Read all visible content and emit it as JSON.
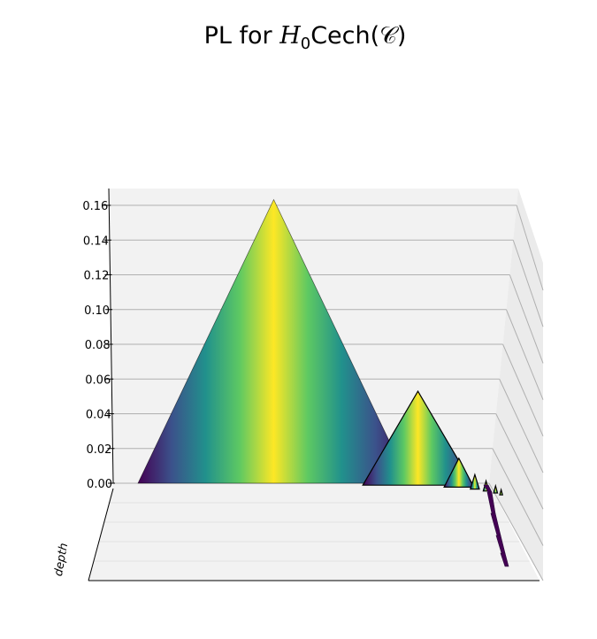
{
  "chart_data": {
    "type": "area",
    "title": "PL for H0Cech(C)",
    "title_parts": {
      "prefix": "PL for ",
      "H": "H",
      "sub": "0",
      "mid": "Cech(",
      "C": "𝒞",
      "suffix": ")"
    },
    "zlabel": "depth",
    "zlim": [
      0,
      0.17
    ],
    "z_ticks": [
      0.0,
      0.02,
      0.04,
      0.06,
      0.08,
      0.1,
      0.12,
      0.14,
      0.16
    ],
    "z_tick_labels": [
      "0.00",
      "0.02",
      "0.04",
      "0.06",
      "0.08",
      "0.10",
      "0.12",
      "0.14",
      "0.16"
    ],
    "grid": true,
    "colormap": "viridis",
    "colors": {
      "pane": "#f2f2f2",
      "grid": "#b0b0b0",
      "edge": "#000000",
      "viridis": [
        "#440154",
        "#3b528b",
        "#21918c",
        "#5ec962",
        "#fde725"
      ]
    },
    "series": [
      {
        "x": [
          0.0,
          0.4847,
          0.9693
        ],
        "y": [
          0.0,
          0.1633,
          0.0
        ]
      },
      {
        "x": [
          0.7958,
          0.9926,
          1.1894
        ],
        "y": [
          0.0,
          0.0541,
          0.0
        ]
      },
      {
        "x": [
          1.0791,
          1.1319,
          1.1848
        ],
        "y": [
          0.0,
          0.0166,
          0.0
        ]
      },
      {
        "x": [
          1.166,
          1.182,
          1.198
        ],
        "y": [
          0.0,
          0.0083,
          0.0
        ]
      },
      {
        "x": [
          1.205,
          1.215,
          1.225
        ],
        "y": [
          0.0,
          0.0058,
          0.0
        ]
      },
      {
        "x": [
          1.235,
          1.242,
          1.249
        ],
        "y": [
          0.0,
          0.0041,
          0.0
        ]
      },
      {
        "x": [
          1.25,
          1.255,
          1.26
        ],
        "y": [
          0.0,
          0.003,
          0.0
        ]
      }
    ]
  }
}
